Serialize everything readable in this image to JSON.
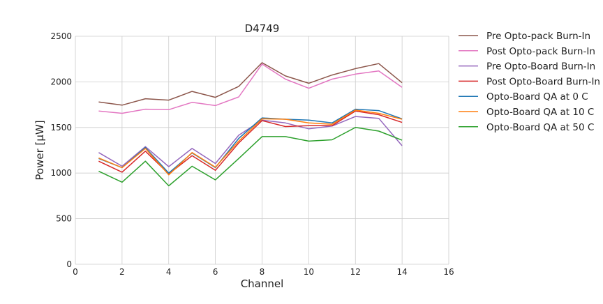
{
  "chart_data": {
    "type": "line",
    "title": "D4749",
    "xlabel": "Channel",
    "ylabel": "Power [μW]",
    "xlim": [
      0,
      16
    ],
    "ylim": [
      0,
      2500
    ],
    "x_ticks": [
      0,
      2,
      4,
      6,
      8,
      10,
      12,
      14,
      16
    ],
    "y_ticks": [
      0,
      500,
      1000,
      1500,
      2000,
      2500
    ],
    "grid": true,
    "legend_position": "outside-right",
    "x": [
      1,
      2,
      3,
      4,
      5,
      6,
      7,
      8,
      9,
      10,
      11,
      12,
      13,
      14
    ],
    "series": [
      {
        "name": "Pre Opto-pack Burn-In",
        "color": "#8c564b",
        "values": [
          1780,
          1745,
          1815,
          1800,
          1895,
          1830,
          1950,
          2210,
          2065,
          1985,
          2075,
          2145,
          2200,
          1990
        ]
      },
      {
        "name": "Post Opto-pack Burn-In",
        "color": "#e377c2",
        "values": [
          1680,
          1655,
          1700,
          1695,
          1775,
          1740,
          1835,
          2195,
          2030,
          1930,
          2030,
          2085,
          2120,
          1940
        ]
      },
      {
        "name": "Pre Opto-Board Burn-In",
        "color": "#9467bd",
        "values": [
          1225,
          1075,
          1290,
          1070,
          1270,
          1105,
          1415,
          1580,
          1550,
          1485,
          1515,
          1620,
          1600,
          1300
        ]
      },
      {
        "name": "Post Opto-Board Burn-In",
        "color": "#d62728",
        "values": [
          1130,
          1010,
          1240,
          990,
          1190,
          1030,
          1330,
          1575,
          1510,
          1520,
          1520,
          1680,
          1640,
          1555
        ]
      },
      {
        "name": "Opto-Board QA at 0 C",
        "color": "#1f77b4",
        "values": [
          1160,
          1060,
          1280,
          1000,
          1220,
          1060,
          1380,
          1605,
          1590,
          1580,
          1550,
          1700,
          1685,
          1595
        ]
      },
      {
        "name": "Opto-Board QA at 10 C",
        "color": "#ff7f0e",
        "values": [
          1165,
          1060,
          1270,
          980,
          1225,
          1065,
          1350,
          1595,
          1590,
          1550,
          1535,
          1690,
          1655,
          1590
        ]
      },
      {
        "name": "Opto-Board QA at 50 C",
        "color": "#2ca02c",
        "values": [
          1020,
          900,
          1130,
          860,
          1075,
          925,
          1160,
          1400,
          1400,
          1350,
          1365,
          1500,
          1460,
          1360
        ]
      }
    ]
  }
}
